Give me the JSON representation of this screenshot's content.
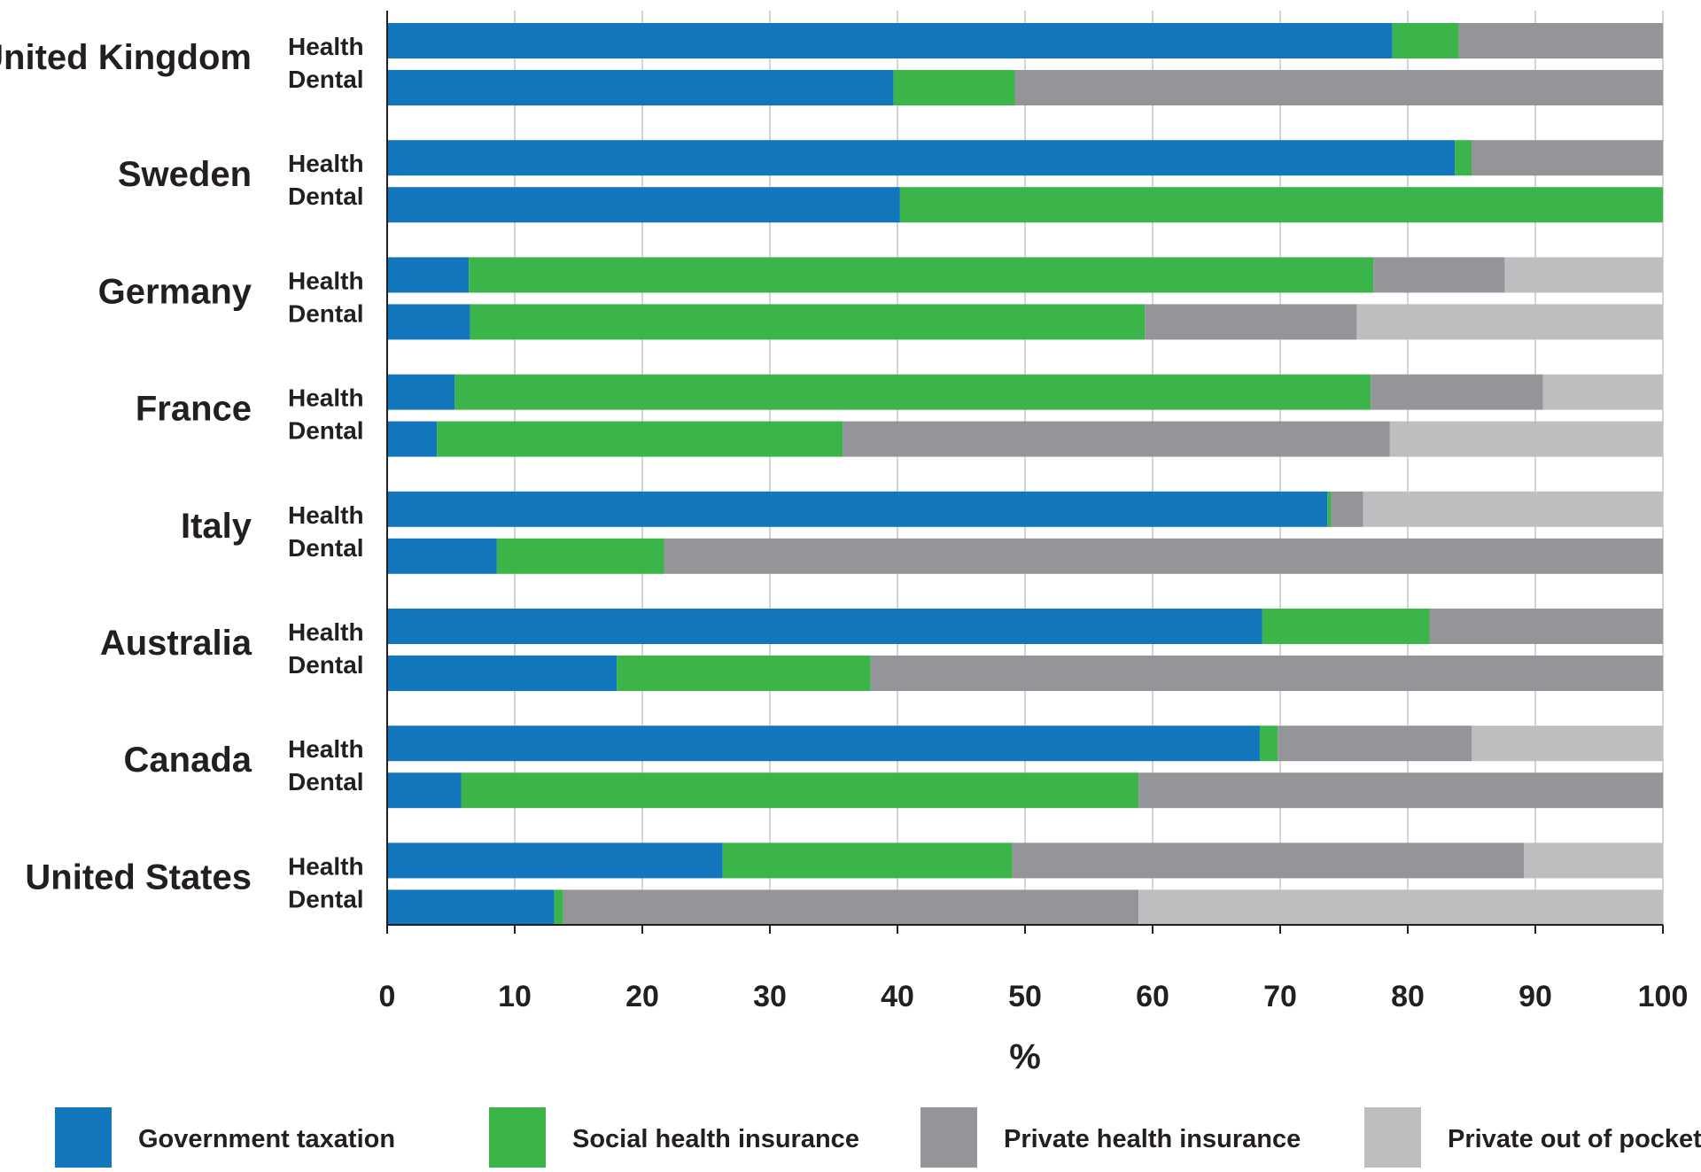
{
  "chart_data": {
    "type": "bar",
    "orientation": "horizontal",
    "stacked": true,
    "xlabel": "%",
    "xlim": [
      0,
      100
    ],
    "xticks": [
      0,
      10,
      20,
      30,
      40,
      50,
      60,
      70,
      80,
      90,
      100
    ],
    "grid": "vertical",
    "legend_position": "bottom",
    "series_names": [
      "Government taxation",
      "Social health insurance",
      "Private health insurance",
      "Private out of pocket"
    ],
    "colors": {
      "Government taxation": "#1276bd",
      "Social health insurance": "#3bb54a",
      "Private health insurance": "#939598",
      "Private out of pocket": "#bcbec0"
    },
    "groups": [
      {
        "country": "United Kingdom",
        "rows": [
          {
            "label": "Health",
            "values": [
              78.8,
              5.2,
              16.0,
              0
            ]
          },
          {
            "label": "Dental",
            "values": [
              39.7,
              9.5,
              50.8,
              0
            ]
          }
        ]
      },
      {
        "country": "Sweden",
        "rows": [
          {
            "label": "Health",
            "values": [
              83.7,
              1.3,
              15.0,
              0
            ]
          },
          {
            "label": "Dental",
            "values": [
              40.2,
              59.8,
              0,
              0
            ]
          }
        ]
      },
      {
        "country": "Germany",
        "rows": [
          {
            "label": "Health",
            "values": [
              6.4,
              70.9,
              10.3,
              12.4
            ]
          },
          {
            "label": "Dental",
            "values": [
              6.5,
              52.9,
              16.6,
              24.0
            ]
          }
        ]
      },
      {
        "country": "France",
        "rows": [
          {
            "label": "Health",
            "values": [
              5.3,
              71.8,
              13.5,
              9.4
            ]
          },
          {
            "label": "Dental",
            "values": [
              3.9,
              31.8,
              42.9,
              21.4
            ]
          }
        ]
      },
      {
        "country": "Italy",
        "rows": [
          {
            "label": "Health",
            "values": [
              73.7,
              0.3,
              2.5,
              23.5
            ]
          },
          {
            "label": "Dental",
            "values": [
              8.6,
              13.1,
              78.3,
              0
            ]
          }
        ]
      },
      {
        "country": "Australia",
        "rows": [
          {
            "label": "Health",
            "values": [
              68.6,
              13.1,
              18.3,
              0
            ]
          },
          {
            "label": "Dental",
            "values": [
              18.0,
              19.9,
              62.1,
              0
            ]
          }
        ]
      },
      {
        "country": "Canada",
        "rows": [
          {
            "label": "Health",
            "values": [
              68.4,
              1.4,
              15.2,
              15.0
            ]
          },
          {
            "label": "Dental",
            "values": [
              5.8,
              53.1,
              41.1,
              0
            ]
          }
        ]
      },
      {
        "country": "United States",
        "rows": [
          {
            "label": "Health",
            "values": [
              26.3,
              22.7,
              40.1,
              10.9
            ]
          },
          {
            "label": "Dental",
            "values": [
              13.1,
              0.7,
              45.1,
              41.1
            ]
          }
        ]
      }
    ]
  }
}
